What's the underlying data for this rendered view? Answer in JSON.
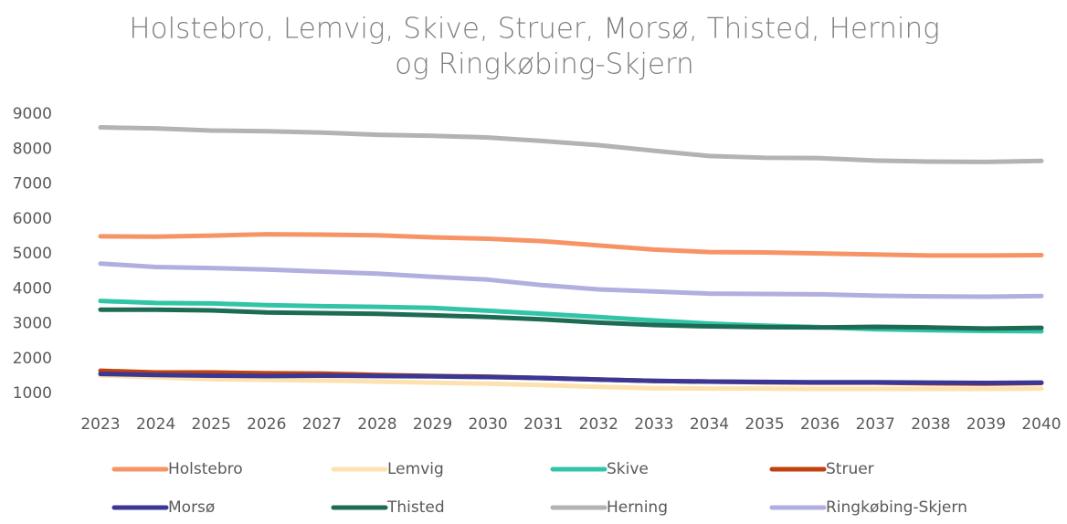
{
  "chart_data": {
    "type": "line",
    "title": [
      "Holstebro, Lemvig, Skive, Struer, Morsø, Thisted, Herning",
      "og Ringkøbing-Skjern"
    ],
    "categories": [
      "2023",
      "2024",
      "2025",
      "2026",
      "2027",
      "2028",
      "2029",
      "2030",
      "2031",
      "2032",
      "2033",
      "2034",
      "2035",
      "2036",
      "2037",
      "2038",
      "2039",
      "2040"
    ],
    "ylim": [
      1000,
      9000
    ],
    "yticks": [
      1000,
      2000,
      3000,
      4000,
      5000,
      6000,
      7000,
      8000,
      9000
    ],
    "grid": false,
    "legend": "bottom",
    "series": [
      {
        "name": "Holstebro",
        "color": "#f79465",
        "values": [
          5500,
          5490,
          5520,
          5560,
          5550,
          5530,
          5470,
          5430,
          5360,
          5240,
          5120,
          5050,
          5040,
          5010,
          4980,
          4950,
          4950,
          4960
        ]
      },
      {
        "name": "Lemvig",
        "color": "#fde2b0",
        "values": [
          1520,
          1460,
          1410,
          1390,
          1370,
          1340,
          1310,
          1280,
          1240,
          1190,
          1150,
          1140,
          1140,
          1130,
          1130,
          1130,
          1130,
          1140
        ]
      },
      {
        "name": "Skive",
        "color": "#31c4a6",
        "values": [
          3650,
          3590,
          3580,
          3530,
          3500,
          3480,
          3450,
          3370,
          3280,
          3190,
          3090,
          3000,
          2940,
          2900,
          2840,
          2810,
          2790,
          2780
        ]
      },
      {
        "name": "Struer",
        "color": "#c0410c",
        "values": [
          1650,
          1600,
          1600,
          1580,
          1570,
          1530,
          1500,
          1480,
          1440,
          1400,
          1360,
          1340,
          1320,
          1310,
          1310,
          1290,
          1280,
          1300
        ]
      },
      {
        "name": "Morsø",
        "color": "#3b3794",
        "values": [
          1560,
          1530,
          1510,
          1500,
          1510,
          1500,
          1490,
          1470,
          1440,
          1400,
          1360,
          1340,
          1330,
          1320,
          1320,
          1310,
          1300,
          1310
        ]
      },
      {
        "name": "Thisted",
        "color": "#1e6b55",
        "values": [
          3400,
          3400,
          3380,
          3320,
          3300,
          3280,
          3240,
          3190,
          3120,
          3030,
          2960,
          2920,
          2900,
          2890,
          2910,
          2890,
          2860,
          2880
        ]
      },
      {
        "name": "Herning",
        "color": "#b3b3b3",
        "values": [
          8620,
          8590,
          8530,
          8510,
          8470,
          8410,
          8380,
          8330,
          8230,
          8110,
          7950,
          7800,
          7750,
          7740,
          7670,
          7640,
          7630,
          7660
        ]
      },
      {
        "name": "Ringkøbing-Skjern",
        "color": "#b1aee0",
        "values": [
          4720,
          4620,
          4590,
          4550,
          4490,
          4430,
          4340,
          4260,
          4100,
          3980,
          3920,
          3860,
          3850,
          3840,
          3800,
          3780,
          3770,
          3790
        ]
      }
    ]
  }
}
